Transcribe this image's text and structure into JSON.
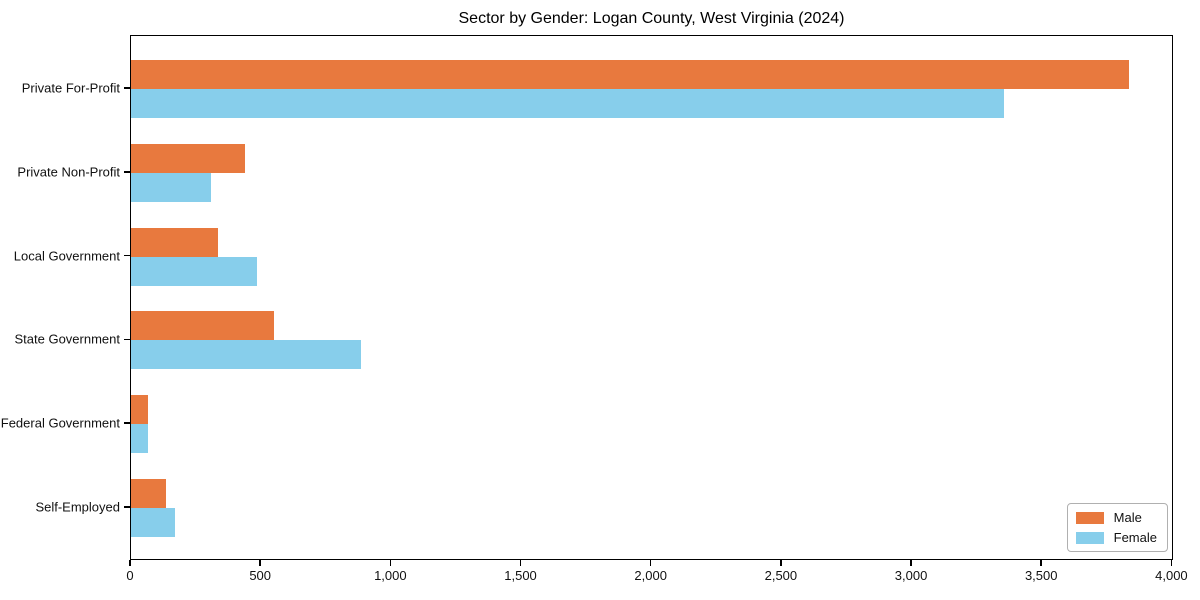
{
  "title": "Sector by Gender: Logan County, West Virginia (2024)",
  "colors": {
    "male": "#e8793e",
    "female": "#87ceeb",
    "axis": "#000000",
    "legend_border": "#b0b0b0",
    "background": "#ffffff"
  },
  "legend": {
    "position": "lower right",
    "entries": [
      {
        "label": "Male",
        "color": "#e8793e"
      },
      {
        "label": "Female",
        "color": "#87ceeb"
      }
    ]
  },
  "chart_data": {
    "type": "bar",
    "orientation": "horizontal",
    "title": "Sector by Gender: Logan County, West Virginia (2024)",
    "categories": [
      "Private For-Profit",
      "Private Non-Profit",
      "Local Government",
      "State Government",
      "Federal Government",
      "Self-Employed"
    ],
    "series": [
      {
        "name": "Male",
        "color": "#e8793e",
        "values": [
          3835,
          439,
          335,
          548,
          66,
          133
        ]
      },
      {
        "name": "Female",
        "color": "#87ceeb",
        "values": [
          3355,
          307,
          484,
          883,
          64,
          168
        ]
      }
    ],
    "xlabel": "",
    "ylabel": "",
    "xlim": [
      0,
      4000
    ],
    "xticks": [
      0,
      500,
      1000,
      1500,
      2000,
      2500,
      3000,
      3500,
      4000
    ],
    "xtick_labels": [
      "0",
      "500",
      "1,000",
      "1,500",
      "2,000",
      "2,500",
      "3,000",
      "3,500",
      "4,000"
    ],
    "grid": false,
    "legend_position": "lower right"
  }
}
